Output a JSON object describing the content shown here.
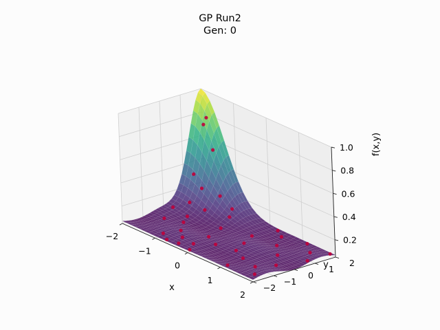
{
  "chart_data": {
    "type": "surface3d",
    "title": "GP Run2",
    "subtitle": "Gen: 0",
    "xlabel": "x",
    "ylabel": "y",
    "zlabel": "f(x,y)",
    "xlim": [
      -2,
      2
    ],
    "ylim": [
      -2,
      2
    ],
    "zlim": [
      0.05,
      1.0
    ],
    "xticks": [
      "−2",
      "−1",
      "0",
      "1",
      "2"
    ],
    "yticks": [
      "−2",
      "−1",
      "0",
      "1",
      "2"
    ],
    "zticks": [
      "0.2",
      "0.4",
      "0.6",
      "0.8",
      "1.0"
    ],
    "colormap": "viridis",
    "point_color": "#c0003a",
    "grid": true,
    "surface_peak": {
      "x": -2.0,
      "y": 2.0,
      "z": 1.0
    },
    "surface_floor": 0.05,
    "points": [
      {
        "x": -1.8,
        "y": 1.9,
        "z": 0.78
      },
      {
        "x": -1.7,
        "y": 1.6,
        "z": 0.75
      },
      {
        "x": -1.5,
        "y": 1.7,
        "z": 0.55
      },
      {
        "x": -1.8,
        "y": 1.2,
        "z": 0.33
      },
      {
        "x": -1.5,
        "y": 1.1,
        "z": 0.25
      },
      {
        "x": -1.2,
        "y": 1.5,
        "z": 0.2
      },
      {
        "x": -1.7,
        "y": 0.8,
        "z": 0.12
      },
      {
        "x": -1.3,
        "y": 0.9,
        "z": 0.1
      },
      {
        "x": -0.8,
        "y": 1.3,
        "z": 0.08
      },
      {
        "x": -1.9,
        "y": 0.3,
        "z": 0.08
      },
      {
        "x": -1.4,
        "y": 0.2,
        "z": 0.07
      },
      {
        "x": -1.6,
        "y": -0.6,
        "z": 0.07
      },
      {
        "x": -1.2,
        "y": -0.3,
        "z": 0.07
      },
      {
        "x": -0.9,
        "y": -0.9,
        "z": 0.07
      },
      {
        "x": -1.0,
        "y": -1.6,
        "z": 0.07
      },
      {
        "x": -0.6,
        "y": -1.3,
        "z": 0.07
      },
      {
        "x": -0.4,
        "y": -1.8,
        "z": 0.07
      },
      {
        "x": -0.7,
        "y": -1.9,
        "z": 0.07
      },
      {
        "x": -0.2,
        "y": -1.4,
        "z": 0.07
      },
      {
        "x": -0.5,
        "y": 0.4,
        "z": 0.07
      },
      {
        "x": -0.3,
        "y": -0.5,
        "z": 0.07
      },
      {
        "x": 0.2,
        "y": 0.8,
        "z": 0.07
      },
      {
        "x": 0.1,
        "y": -0.8,
        "z": 0.07
      },
      {
        "x": 0.0,
        "y": -1.9,
        "z": 0.07
      },
      {
        "x": 0.4,
        "y": 0.1,
        "z": 0.07
      },
      {
        "x": 0.6,
        "y": -0.6,
        "z": 0.07
      },
      {
        "x": 0.6,
        "y": 1.6,
        "z": 0.07
      },
      {
        "x": 0.9,
        "y": 0.9,
        "z": 0.07
      },
      {
        "x": 1.0,
        "y": -0.9,
        "z": 0.07
      },
      {
        "x": 1.1,
        "y": -1.8,
        "z": 0.07
      },
      {
        "x": 1.3,
        "y": 0.3,
        "z": 0.07
      },
      {
        "x": 1.5,
        "y": -1.1,
        "z": 0.07
      },
      {
        "x": 1.6,
        "y": 1.4,
        "z": 0.07
      },
      {
        "x": 1.7,
        "y": -0.4,
        "z": 0.07
      },
      {
        "x": 1.9,
        "y": 0.8,
        "z": 0.07
      },
      {
        "x": 1.8,
        "y": -1.6,
        "z": 0.07
      },
      {
        "x": -1.1,
        "y": 1.9,
        "z": 0.08
      },
      {
        "x": 0.3,
        "y": 1.9,
        "z": 0.07
      },
      {
        "x": 1.2,
        "y": 1.9,
        "z": 0.07
      },
      {
        "x": 1.9,
        "y": 1.9,
        "z": 0.07
      }
    ]
  }
}
